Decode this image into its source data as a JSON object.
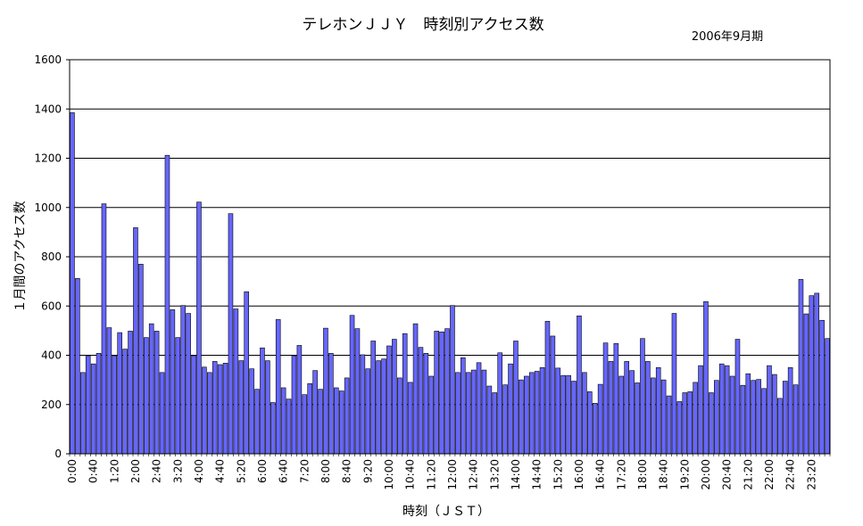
{
  "chart_data": {
    "type": "bar",
    "title": "テレホンＪＪＹ　時刻別アクセス数",
    "subtitle": "2006年9月期",
    "xlabel": "時刻（ＪＳＴ）",
    "ylabel": "１月間のアクセス数",
    "ylim": [
      0,
      1600
    ],
    "yticks": [
      "0",
      "200",
      "400",
      "600",
      "800",
      "1000",
      "1200",
      "1400",
      "1600"
    ],
    "grid": true,
    "bar_color": "#6666ff",
    "xtick_labels": [
      "0:00",
      "0:40",
      "1:20",
      "2:00",
      "2:40",
      "3:20",
      "4:00",
      "4:40",
      "5:20",
      "6:00",
      "6:40",
      "7:20",
      "8:00",
      "8:40",
      "9:20",
      "10:00",
      "10:40",
      "11:20",
      "12:00",
      "12:40",
      "13:20",
      "14:00",
      "14:40",
      "15:20",
      "16:00",
      "16:40",
      "17:20",
      "18:00",
      "18:40",
      "19:20",
      "20:00",
      "20:40",
      "21:20",
      "22:00",
      "22:40",
      "23:20"
    ],
    "values": [
      1385,
      712,
      330,
      398,
      365,
      408,
      1015,
      512,
      398,
      492,
      425,
      498,
      918,
      770,
      472,
      528,
      498,
      330,
      1212,
      585,
      472,
      602,
      570,
      398,
      1022,
      352,
      330,
      375,
      362,
      368,
      975,
      588,
      378,
      658,
      345,
      262,
      430,
      378,
      208,
      545,
      268,
      222,
      398,
      440,
      240,
      285,
      338,
      262,
      510,
      408,
      268,
      255,
      308,
      562,
      508,
      402,
      345,
      458,
      378,
      385,
      438,
      465,
      308,
      488,
      290,
      528,
      432,
      408,
      315,
      498,
      495,
      508,
      602,
      330,
      390,
      330,
      340,
      370,
      340,
      275,
      248,
      410,
      280,
      365,
      458,
      300,
      315,
      330,
      335,
      350,
      538,
      478,
      348,
      318,
      318,
      295,
      560,
      330,
      252,
      205,
      282,
      450,
      375,
      448,
      315,
      375,
      338,
      288,
      468,
      375,
      308,
      350,
      300,
      235,
      570,
      212,
      248,
      252,
      290,
      358,
      618,
      248,
      298,
      365,
      358,
      315,
      465,
      278,
      325,
      298,
      302,
      265,
      358,
      322,
      225,
      295,
      350,
      280,
      708,
      568,
      642,
      652,
      542,
      468
    ]
  }
}
